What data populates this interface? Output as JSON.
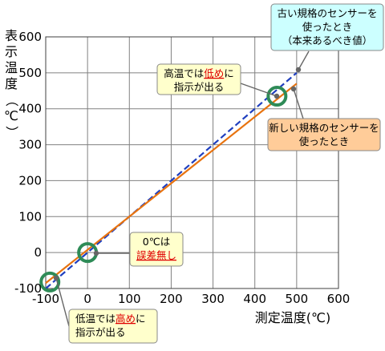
{
  "chart_data": {
    "type": "line",
    "xlabel": "測定温度(℃)",
    "ylabel": "表示温度（℃）",
    "xlim": [
      -100,
      600
    ],
    "ylim": [
      -100,
      600
    ],
    "xticks": [
      -100,
      0,
      100,
      200,
      300,
      400,
      500,
      600
    ],
    "yticks": [
      -100,
      0,
      100,
      200,
      300,
      400,
      500,
      600
    ],
    "grid": true,
    "series": [
      {
        "values": [
          [
            -100,
            -100
          ],
          [
            500,
            500
          ]
        ],
        "color": "#1f3fbf",
        "dash": "dashed"
      },
      {
        "values": [
          [
            -100,
            -85
          ],
          [
            500,
            470
          ]
        ],
        "color": "#e8730f",
        "dash": "solid"
      }
    ],
    "highlights": [
      {
        "x": -90,
        "y": -82,
        "color": "#2e8b57"
      },
      {
        "x": 0,
        "y": 0,
        "color": "#2e8b57"
      },
      {
        "x": 453,
        "y": 435,
        "color": "#2e8b57"
      }
    ],
    "annotations": [
      {
        "id": "old-sensor",
        "lines": [
          "古い規格のセンサーを",
          "使ったとき",
          "（本来あるべき値）"
        ],
        "fill": "#ccffff"
      },
      {
        "id": "high-low",
        "lines": [
          "高温では低めに",
          "指示が出る"
        ],
        "emphasis": "低め",
        "fill": "#ffffcc"
      },
      {
        "id": "new-sensor",
        "lines": [
          "新しい規格のセンサーを",
          "使ったとき"
        ],
        "fill": "#ffcc99"
      },
      {
        "id": "zero",
        "lines": [
          "0℃は",
          "誤差無し"
        ],
        "emphasis": "誤差無し",
        "fill": "#ffffcc"
      },
      {
        "id": "low-high",
        "lines": [
          "低温では高めに",
          "指示が出る"
        ],
        "emphasis": "高め",
        "fill": "#ffffcc"
      }
    ]
  }
}
